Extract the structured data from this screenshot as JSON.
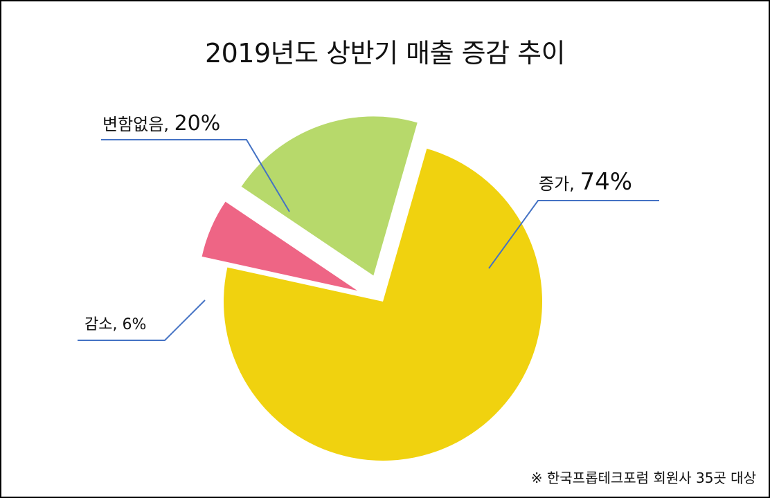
{
  "chart_data": {
    "type": "pie",
    "title": "2019년도 상반기 매출 증감 추이",
    "categories": [
      "증가",
      "감소",
      "변함없음"
    ],
    "values": [
      74,
      6,
      20
    ],
    "labels": [
      {
        "category": "증가",
        "separator": ", ",
        "percent": "74%"
      },
      {
        "category": "감소",
        "separator": ", ",
        "percent": "6%"
      },
      {
        "category": "변함없음",
        "separator": ", ",
        "percent": "20%"
      }
    ],
    "colors": [
      "#F0D20F",
      "#EE6585",
      "#B7D96B"
    ],
    "leader_line_color": "#4472C4",
    "exploded": true,
    "legend": "none"
  },
  "footnote": "※ 한국프롭테크포럼 회원사 35곳 대상"
}
